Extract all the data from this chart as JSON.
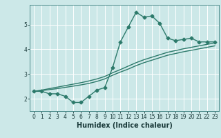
{
  "title": "",
  "xlabel": "Humidex (Indice chaleur)",
  "ylabel": "",
  "background_color": "#cce8e8",
  "grid_color": "#ffffff",
  "line_color": "#2d7a6b",
  "xlim": [
    -0.5,
    23.5
  ],
  "ylim": [
    1.5,
    5.8
  ],
  "yticks": [
    2,
    3,
    4,
    5
  ],
  "xticks": [
    0,
    1,
    2,
    3,
    4,
    5,
    6,
    7,
    8,
    9,
    10,
    11,
    12,
    13,
    14,
    15,
    16,
    17,
    18,
    19,
    20,
    21,
    22,
    23
  ],
  "series1_x": [
    0,
    1,
    2,
    3,
    4,
    5,
    6,
    7,
    8,
    9,
    10,
    11,
    12,
    13,
    14,
    15,
    16,
    17,
    18,
    19,
    20,
    21,
    22,
    23
  ],
  "series1_y": [
    2.3,
    2.3,
    2.2,
    2.2,
    2.1,
    1.85,
    1.85,
    2.1,
    2.35,
    2.45,
    3.25,
    4.3,
    4.9,
    5.5,
    5.3,
    5.35,
    5.05,
    4.45,
    4.35,
    4.4,
    4.45,
    4.3,
    4.3,
    4.3
  ],
  "series2_x": [
    0,
    1,
    2,
    3,
    4,
    5,
    6,
    7,
    8,
    9,
    10,
    11,
    12,
    13,
    14,
    15,
    16,
    17,
    18,
    19,
    20,
    21,
    22,
    23
  ],
  "series2_y": [
    2.3,
    2.35,
    2.41,
    2.47,
    2.53,
    2.59,
    2.65,
    2.72,
    2.8,
    2.9,
    3.05,
    3.18,
    3.32,
    3.46,
    3.58,
    3.68,
    3.78,
    3.88,
    3.95,
    4.02,
    4.08,
    4.14,
    4.2,
    4.26
  ],
  "series3_x": [
    0,
    1,
    2,
    3,
    4,
    5,
    6,
    7,
    8,
    9,
    10,
    11,
    12,
    13,
    14,
    15,
    16,
    17,
    18,
    19,
    20,
    21,
    22,
    23
  ],
  "series3_y": [
    2.3,
    2.33,
    2.37,
    2.41,
    2.46,
    2.51,
    2.56,
    2.62,
    2.7,
    2.8,
    2.95,
    3.08,
    3.2,
    3.34,
    3.46,
    3.56,
    3.66,
    3.76,
    3.83,
    3.9,
    3.96,
    4.02,
    4.08,
    4.14
  ],
  "marker": "D",
  "markersize": 2.5,
  "linewidth": 1.0,
  "tick_fontsize": 5.5,
  "xlabel_fontsize": 7.0
}
